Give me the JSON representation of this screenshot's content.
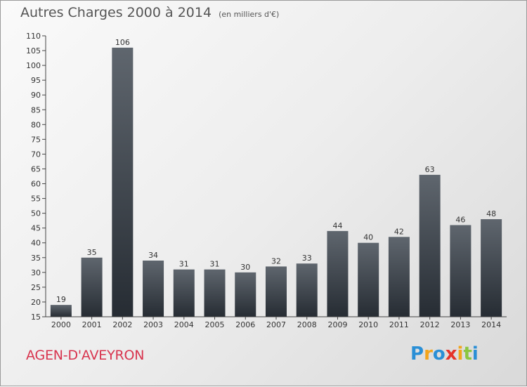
{
  "header": {
    "title": "Autres Charges 2000 à 2014",
    "subtitle": "(en milliers d'€)"
  },
  "footer": {
    "commune": "AGEN-D'AVEYRON",
    "logo_letters": [
      {
        "char": "P",
        "color": "#2a8fd6"
      },
      {
        "char": "r",
        "color": "#f3a51c"
      },
      {
        "char": "o",
        "color": "#2a8fd6"
      },
      {
        "char": "x",
        "color": "#e5332a"
      },
      {
        "char": "i",
        "color": "#f3a51c"
      },
      {
        "char": "t",
        "color": "#8cc63f"
      },
      {
        "char": "i",
        "color": "#2a8fd6"
      }
    ]
  },
  "chart_data": {
    "type": "bar",
    "categories": [
      "2000",
      "2001",
      "2002",
      "2003",
      "2004",
      "2005",
      "2006",
      "2007",
      "2008",
      "2009",
      "2010",
      "2011",
      "2012",
      "2013",
      "2014"
    ],
    "values": [
      19,
      35,
      106,
      34,
      31,
      31,
      30,
      32,
      33,
      44,
      40,
      42,
      63,
      46,
      48
    ],
    "ylim": [
      15,
      110
    ],
    "ytick_step": 5,
    "grid": false,
    "bar_color_top": "#5f666e",
    "bar_color_bottom": "#262c33"
  }
}
